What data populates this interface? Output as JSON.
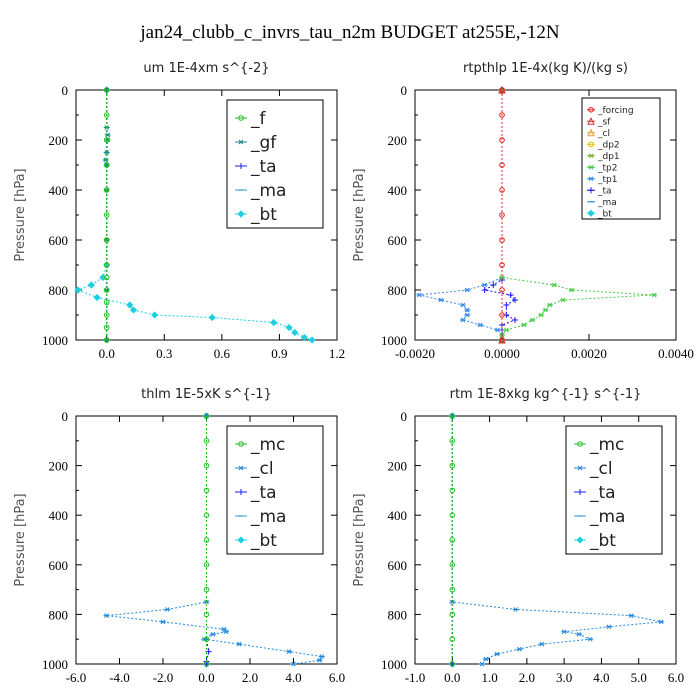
{
  "figure_title": "jan24_clubb_c_invrs_tau_n2m  BUDGET at255E,-12N",
  "chart_data": [
    {
      "type": "line",
      "title": "um   1E-4xm s^{-2}",
      "ylabel": "Pressure [hPa]",
      "xlim": [
        -0.16,
        1.2
      ],
      "ylim": [
        1000,
        0
      ],
      "xticks": [
        "0.0",
        "0.3",
        "0.6",
        "0.9",
        "1.2"
      ],
      "xtick_values": [
        0.0,
        0.3,
        0.6,
        0.9,
        1.2
      ],
      "yticks": [
        "0",
        "200",
        "400",
        "600",
        "800",
        "1000"
      ],
      "legend_style": "large",
      "legend_placement": "top-right",
      "series": [
        {
          "name": "_f",
          "color": "#22c022",
          "marker": "circle",
          "p": [
            0,
            100,
            200,
            300,
            400,
            500,
            600,
            700,
            750,
            800,
            850,
            900,
            950,
            1000
          ],
          "x": [
            0,
            0,
            0,
            0,
            0,
            0,
            0,
            0,
            0,
            0,
            0,
            0,
            0,
            0
          ]
        },
        {
          "name": "_gf",
          "color": "#178a8a",
          "marker": "asterisk",
          "p": [
            0,
            150,
            180,
            200,
            250,
            280,
            300,
            400,
            600,
            800,
            1000
          ],
          "x": [
            0.0,
            0.0,
            0.005,
            0.005,
            0.0,
            -0.005,
            0.0,
            0.0,
            0.0,
            0.0,
            0.0
          ]
        },
        {
          "name": "_ta",
          "color": "#1a1aff",
          "marker": "plus",
          "p": [
            0,
            1000
          ],
          "x": [
            0,
            0
          ]
        },
        {
          "name": "_ma",
          "color": "#3399dd",
          "marker": "dash",
          "p": [
            0,
            1000
          ],
          "x": [
            0,
            0
          ]
        },
        {
          "name": "_bt",
          "color": "#1ccfe0",
          "marker": "diamond",
          "p": [
            0,
            700,
            750,
            780,
            800,
            830,
            860,
            880,
            900,
            910,
            930,
            950,
            970,
            990,
            1000
          ],
          "x": [
            0.0,
            0.0,
            -0.02,
            -0.08,
            -0.15,
            -0.05,
            0.12,
            0.14,
            0.25,
            0.55,
            0.87,
            0.95,
            0.98,
            1.03,
            1.07
          ]
        }
      ]
    },
    {
      "type": "line",
      "title": "rtpthlp   1E-4x(kg K)/(kg s)",
      "ylabel": "Pressure [hPa]",
      "xlim": [
        -0.002,
        0.004
      ],
      "ylim": [
        1000,
        0
      ],
      "xticks": [
        "-0.0020",
        "0.0000",
        "0.0020",
        "0.0040"
      ],
      "xtick_values": [
        -0.002,
        0.0,
        0.002,
        0.004
      ],
      "yticks": [
        "0",
        "200",
        "400",
        "600",
        "800",
        "1000"
      ],
      "legend_style": "small",
      "legend_placement": "top-right",
      "series": [
        {
          "name": "_forcing",
          "color": "#e02020",
          "marker": "circle",
          "p": [
            0,
            100,
            200,
            300,
            400,
            500,
            600,
            700,
            800,
            900,
            1000
          ],
          "x": [
            0,
            0,
            0,
            0,
            0,
            0,
            0,
            0,
            0,
            0,
            0
          ]
        },
        {
          "name": "_sf",
          "color": "#cc3333",
          "marker": "triangle",
          "p": [
            0,
            1000
          ],
          "x": [
            0,
            0
          ]
        },
        {
          "name": "_cl",
          "color": "#e0a030",
          "marker": "triangle",
          "p": [
            0,
            1000
          ],
          "x": [
            0,
            0
          ]
        },
        {
          "name": "_dp2",
          "color": "#e0c000",
          "marker": "circle",
          "p": [
            0,
            1000
          ],
          "x": [
            0,
            0
          ]
        },
        {
          "name": "_dp1",
          "color": "#7ab02a",
          "marker": "asterisk",
          "p": [
            0,
            1000
          ],
          "x": [
            0,
            0
          ]
        },
        {
          "name": "_tp2",
          "color": "#44cc44",
          "marker": "asterisk",
          "p": [
            0,
            750,
            780,
            800,
            820,
            840,
            860,
            880,
            900,
            920,
            940,
            960,
            980,
            1000
          ],
          "x": [
            0.0,
            0.0,
            0.0012,
            0.0016,
            0.0035,
            0.0014,
            0.0011,
            0.001,
            0.0009,
            0.0007,
            0.0005,
            0.0001,
            0.0,
            0.0
          ]
        },
        {
          "name": "_tp1",
          "color": "#3388ee",
          "marker": "asterisk",
          "p": [
            0,
            750,
            780,
            800,
            820,
            840,
            860,
            880,
            900,
            920,
            940,
            960,
            980,
            1000
          ],
          "x": [
            0.0,
            0.0,
            -0.0004,
            -0.0008,
            -0.0019,
            -0.0014,
            -0.0009,
            -0.0008,
            -0.0008,
            -0.0009,
            -0.0005,
            -0.0001,
            0.0,
            0.0
          ]
        },
        {
          "name": "_ta",
          "color": "#1a1aff",
          "marker": "plus",
          "p": [
            0,
            760,
            780,
            800,
            820,
            840,
            860,
            900,
            920,
            940,
            960,
            980,
            1000
          ],
          "x": [
            0.0,
            0.0,
            -0.0002,
            -0.0004,
            0.0002,
            0.0003,
            0.0001,
            0.0001,
            0.0003,
            0.0,
            0.0,
            0.0,
            0.0
          ]
        },
        {
          "name": "_ma",
          "color": "#3399dd",
          "marker": "dash",
          "p": [
            0,
            1000
          ],
          "x": [
            0,
            0
          ]
        },
        {
          "name": "_bt",
          "color": "#1ccfe0",
          "marker": "diamond",
          "p": [
            0,
            1000
          ],
          "x": [
            0,
            0
          ]
        }
      ]
    },
    {
      "type": "line",
      "title": "thlm   1E-5xK s^{-1}",
      "ylabel": "Pressure [hPa]",
      "xlim": [
        -6.0,
        6.0
      ],
      "ylim": [
        1000,
        0
      ],
      "xticks": [
        "-6.0",
        "-4.0",
        "-2.0",
        "0.0",
        "2.0",
        "4.0",
        "6.0"
      ],
      "xtick_values": [
        -6,
        -4,
        -2,
        0,
        2,
        4,
        6
      ],
      "yticks": [
        "0",
        "200",
        "400",
        "600",
        "800",
        "1000"
      ],
      "legend_style": "large",
      "legend_placement": "top-right",
      "series": [
        {
          "name": "_mc",
          "color": "#22c022",
          "marker": "circle",
          "p": [
            0,
            100,
            200,
            300,
            400,
            500,
            600,
            700,
            800,
            900,
            1000
          ],
          "x": [
            0,
            0,
            0,
            0,
            0,
            0,
            0,
            0,
            0,
            0,
            0
          ]
        },
        {
          "name": "_cl",
          "color": "#2288dd",
          "marker": "asterisk",
          "p": [
            0,
            750,
            780,
            805,
            830,
            860,
            870,
            880,
            900,
            920,
            950,
            970,
            985,
            1000
          ],
          "x": [
            0.0,
            0.0,
            -1.8,
            -4.6,
            -2.0,
            0.8,
            0.9,
            0.3,
            -0.1,
            1.5,
            3.8,
            5.3,
            5.2,
            4.0
          ]
        },
        {
          "name": "_ta",
          "color": "#1a1aff",
          "marker": "plus",
          "p": [
            0,
            900,
            950,
            990,
            1000
          ],
          "x": [
            0.0,
            0.0,
            0.1,
            0.0,
            0.0
          ]
        },
        {
          "name": "_ma",
          "color": "#3399dd",
          "marker": "dash",
          "p": [
            0,
            1000
          ],
          "x": [
            0,
            0
          ]
        },
        {
          "name": "_bt",
          "color": "#1ccfe0",
          "marker": "diamond",
          "p": [
            0,
            1000
          ],
          "x": [
            0,
            0
          ]
        }
      ]
    },
    {
      "type": "line",
      "title": "rtm   1E-8xkg kg^{-1} s^{-1}",
      "ylabel": "Pressure [hPa]",
      "xlim": [
        -1.0,
        6.0
      ],
      "ylim": [
        1000,
        0
      ],
      "xticks": [
        "-1.0",
        "0.0",
        "1.0",
        "2.0",
        "3.0",
        "4.0",
        "5.0",
        "6.0"
      ],
      "xtick_values": [
        -1,
        0,
        1,
        2,
        3,
        4,
        5,
        6
      ],
      "yticks": [
        "0",
        "200",
        "400",
        "600",
        "800",
        "1000"
      ],
      "legend_style": "large",
      "legend_placement": "top-right",
      "series": [
        {
          "name": "_mc",
          "color": "#22c022",
          "marker": "circle",
          "p": [
            0,
            100,
            200,
            300,
            400,
            500,
            600,
            700,
            800,
            900,
            1000
          ],
          "x": [
            0,
            0,
            0,
            0,
            0,
            0,
            0,
            0,
            0,
            0,
            0
          ]
        },
        {
          "name": "_cl",
          "color": "#2288dd",
          "marker": "asterisk",
          "p": [
            0,
            750,
            780,
            805,
            830,
            850,
            870,
            880,
            900,
            920,
            940,
            960,
            980,
            1000
          ],
          "x": [
            0.0,
            0.0,
            1.7,
            4.8,
            5.6,
            4.2,
            3.0,
            3.4,
            3.7,
            2.4,
            1.8,
            1.2,
            0.9,
            0.8
          ]
        },
        {
          "name": "_ta",
          "color": "#1a1aff",
          "marker": "plus",
          "p": [
            0,
            1000
          ],
          "x": [
            0,
            0
          ]
        },
        {
          "name": "_ma",
          "color": "#3399dd",
          "marker": "dash",
          "p": [
            0,
            1000
          ],
          "x": [
            0,
            0
          ]
        },
        {
          "name": "_bt",
          "color": "#1ccfe0",
          "marker": "diamond",
          "p": [
            0,
            1000
          ],
          "x": [
            0,
            0
          ]
        }
      ]
    }
  ]
}
